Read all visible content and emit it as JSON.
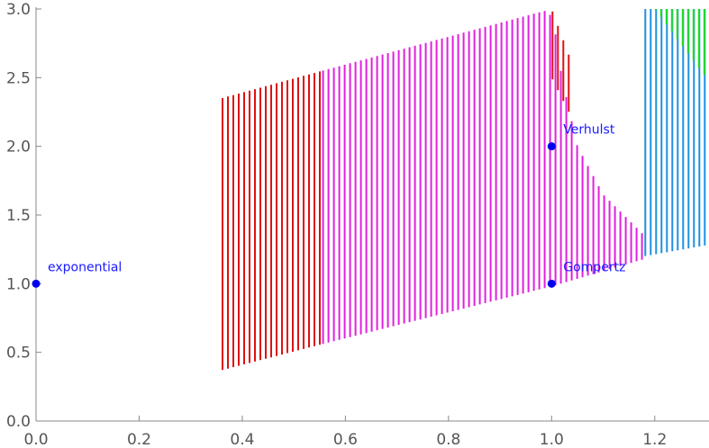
{
  "chart_data": {
    "type": "scatter",
    "title": "",
    "xlabel": "",
    "ylabel": "",
    "xlim": [
      0,
      1.3
    ],
    "ylim": [
      0,
      3.0
    ],
    "x_ticks": [
      0.0,
      0.2,
      0.4,
      0.6,
      0.8,
      1.0,
      1.2
    ],
    "x_tick_labels": [
      "0.0",
      "0.2",
      "0.4",
      "0.6",
      "0.8",
      "1.0",
      "1.2"
    ],
    "y_ticks": [
      0.0,
      0.5,
      1.0,
      1.5,
      2.0,
      2.5,
      3.0
    ],
    "y_tick_labels": [
      "0.0",
      "0.5",
      "1.0",
      "1.5",
      "2.0",
      "2.5",
      "3.0"
    ],
    "grid": false,
    "points": [
      {
        "label": "exponential",
        "x": 0.0,
        "y": 1.0
      },
      {
        "label": "Verhulst",
        "x": 1.0,
        "y": 2.0
      },
      {
        "label": "Gompertz",
        "x": 1.0,
        "y": 1.0
      }
    ],
    "regions": [
      {
        "color": "#dd1111",
        "x_range": [
          0.36,
          0.555
        ],
        "lower": [
          [
            0.36,
            0.37
          ],
          [
            0.555,
            0.56
          ]
        ],
        "upper": [
          [
            0.36,
            2.35
          ],
          [
            0.555,
            2.55
          ]
        ]
      },
      {
        "color": "#e020e0",
        "x_range": [
          0.555,
          1.18
        ],
        "lower": [
          [
            0.555,
            0.56
          ],
          [
            1.0,
            0.98
          ],
          [
            1.18,
            1.18
          ]
        ],
        "upper": [
          [
            0.555,
            2.55
          ],
          [
            0.99,
            2.99
          ],
          [
            1.003,
            2.93
          ],
          [
            1.02,
            2.5
          ],
          [
            1.05,
            2.0
          ],
          [
            1.1,
            1.65
          ],
          [
            1.18,
            1.35
          ]
        ]
      },
      {
        "color": "#dd1111",
        "x_range": [
          1.0,
          1.04
        ],
        "lower": [
          [
            1.0,
            2.5
          ],
          [
            1.04,
            2.2
          ]
        ],
        "upper": [
          [
            1.0,
            3.0
          ],
          [
            1.04,
            2.6
          ]
        ]
      },
      {
        "color": "#1e8fe0",
        "x_range": [
          1.18,
          1.3
        ],
        "lower": [
          [
            1.18,
            1.2
          ],
          [
            1.3,
            1.28
          ]
        ],
        "upper": [
          [
            1.18,
            3.0
          ],
          [
            1.3,
            3.0
          ]
        ]
      },
      {
        "color": "#22dd22",
        "x_range": [
          1.2,
          1.3
        ],
        "lower": [
          [
            1.2,
            3.0
          ],
          [
            1.3,
            2.5
          ]
        ],
        "upper": [
          [
            1.2,
            3.0
          ],
          [
            1.3,
            3.0
          ]
        ]
      }
    ]
  },
  "colors": {
    "axis": "#888888",
    "point": "#0000ee",
    "label": "#1a1aff"
  }
}
